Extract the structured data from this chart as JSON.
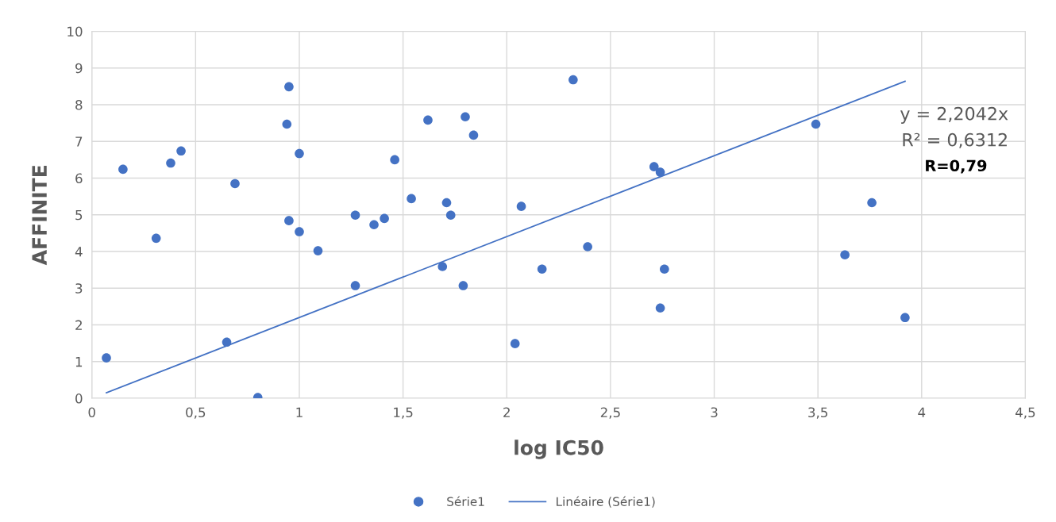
{
  "chart_data": {
    "type": "scatter",
    "xlabel": "log IC50",
    "ylabel": "AFFINITE",
    "xlim": [
      0,
      4.5
    ],
    "xticks": [
      0,
      {
        "value": 0.5,
        "label": "0,5"
      },
      1,
      {
        "value": 1.5,
        "label": "1,5"
      },
      2,
      {
        "value": 2.5,
        "label": "2,5"
      },
      3,
      {
        "value": 3.5,
        "label": "3,5"
      },
      4,
      {
        "value": 4.5,
        "label": "4,5"
      }
    ],
    "ylim": [
      0,
      10
    ],
    "yticks": [
      0,
      1,
      2,
      3,
      4,
      5,
      6,
      7,
      8,
      9,
      10
    ],
    "grid": true,
    "legend": "bottom",
    "series": [
      {
        "name": "Série1",
        "marker": "circle",
        "color": "#4472c4",
        "x": [
          0.07,
          0.15,
          0.31,
          0.38,
          0.43,
          0.65,
          0.69,
          0.8,
          0.95,
          0.94,
          0.95,
          1.0,
          1.0,
          1.09,
          1.27,
          1.27,
          1.36,
          1.41,
          1.46,
          1.54,
          1.62,
          1.71,
          1.73,
          1.69,
          1.8,
          1.84,
          1.79,
          2.04,
          2.07,
          2.17,
          2.32,
          2.39,
          2.71,
          2.74,
          2.74,
          2.76,
          3.49,
          3.63,
          3.76,
          3.92
        ],
        "values": [
          1.1,
          6.24,
          4.36,
          6.41,
          6.74,
          1.53,
          5.85,
          0.02,
          8.49,
          7.47,
          4.84,
          6.67,
          4.54,
          4.02,
          4.99,
          3.07,
          4.73,
          4.9,
          6.5,
          5.44,
          7.58,
          5.33,
          4.99,
          3.59,
          7.67,
          7.17,
          3.07,
          1.49,
          5.23,
          3.52,
          8.68,
          4.13,
          6.31,
          6.16,
          2.46,
          3.52,
          7.47,
          3.91,
          5.33,
          2.2
        ]
      },
      {
        "name": "Linéaire (Série1)",
        "type": "line",
        "line_style": "solid",
        "color": "#4472c4",
        "x": [
          0.07,
          3.92
        ],
        "values": [
          0.15,
          8.64
        ]
      }
    ],
    "annotations": [
      "y = 2,2042x",
      "R² = 0,6312",
      "R=0,79"
    ]
  }
}
